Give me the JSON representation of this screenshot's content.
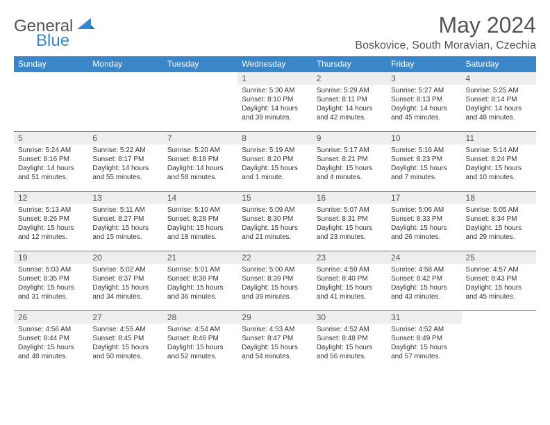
{
  "brand": {
    "part1": "General",
    "part2": "Blue"
  },
  "title": "May 2024",
  "location": "Boskovice, South Moravian, Czechia",
  "colors": {
    "header_bg": "#3a86c8",
    "header_text": "#ffffff",
    "daynum_bg": "#eeeeee",
    "border": "#3a86c8",
    "text": "#333333",
    "title_text": "#555555"
  },
  "weekdays": [
    "Sunday",
    "Monday",
    "Tuesday",
    "Wednesday",
    "Thursday",
    "Friday",
    "Saturday"
  ],
  "weeks": [
    [
      null,
      null,
      null,
      {
        "n": "1",
        "sr": "5:30 AM",
        "ss": "8:10 PM",
        "dl": "14 hours and 39 minutes."
      },
      {
        "n": "2",
        "sr": "5:29 AM",
        "ss": "8:11 PM",
        "dl": "14 hours and 42 minutes."
      },
      {
        "n": "3",
        "sr": "5:27 AM",
        "ss": "8:13 PM",
        "dl": "14 hours and 45 minutes."
      },
      {
        "n": "4",
        "sr": "5:25 AM",
        "ss": "8:14 PM",
        "dl": "14 hours and 48 minutes."
      }
    ],
    [
      {
        "n": "5",
        "sr": "5:24 AM",
        "ss": "8:16 PM",
        "dl": "14 hours and 51 minutes."
      },
      {
        "n": "6",
        "sr": "5:22 AM",
        "ss": "8:17 PM",
        "dl": "14 hours and 55 minutes."
      },
      {
        "n": "7",
        "sr": "5:20 AM",
        "ss": "8:18 PM",
        "dl": "14 hours and 58 minutes."
      },
      {
        "n": "8",
        "sr": "5:19 AM",
        "ss": "8:20 PM",
        "dl": "15 hours and 1 minute."
      },
      {
        "n": "9",
        "sr": "5:17 AM",
        "ss": "8:21 PM",
        "dl": "15 hours and 4 minutes."
      },
      {
        "n": "10",
        "sr": "5:16 AM",
        "ss": "8:23 PM",
        "dl": "15 hours and 7 minutes."
      },
      {
        "n": "11",
        "sr": "5:14 AM",
        "ss": "8:24 PM",
        "dl": "15 hours and 10 minutes."
      }
    ],
    [
      {
        "n": "12",
        "sr": "5:13 AM",
        "ss": "8:26 PM",
        "dl": "15 hours and 12 minutes."
      },
      {
        "n": "13",
        "sr": "5:11 AM",
        "ss": "8:27 PM",
        "dl": "15 hours and 15 minutes."
      },
      {
        "n": "14",
        "sr": "5:10 AM",
        "ss": "8:28 PM",
        "dl": "15 hours and 18 minutes."
      },
      {
        "n": "15",
        "sr": "5:09 AM",
        "ss": "8:30 PM",
        "dl": "15 hours and 21 minutes."
      },
      {
        "n": "16",
        "sr": "5:07 AM",
        "ss": "8:31 PM",
        "dl": "15 hours and 23 minutes."
      },
      {
        "n": "17",
        "sr": "5:06 AM",
        "ss": "8:33 PM",
        "dl": "15 hours and 26 minutes."
      },
      {
        "n": "18",
        "sr": "5:05 AM",
        "ss": "8:34 PM",
        "dl": "15 hours and 29 minutes."
      }
    ],
    [
      {
        "n": "19",
        "sr": "5:03 AM",
        "ss": "8:35 PM",
        "dl": "15 hours and 31 minutes."
      },
      {
        "n": "20",
        "sr": "5:02 AM",
        "ss": "8:37 PM",
        "dl": "15 hours and 34 minutes."
      },
      {
        "n": "21",
        "sr": "5:01 AM",
        "ss": "8:38 PM",
        "dl": "15 hours and 36 minutes."
      },
      {
        "n": "22",
        "sr": "5:00 AM",
        "ss": "8:39 PM",
        "dl": "15 hours and 39 minutes."
      },
      {
        "n": "23",
        "sr": "4:59 AM",
        "ss": "8:40 PM",
        "dl": "15 hours and 41 minutes."
      },
      {
        "n": "24",
        "sr": "4:58 AM",
        "ss": "8:42 PM",
        "dl": "15 hours and 43 minutes."
      },
      {
        "n": "25",
        "sr": "4:57 AM",
        "ss": "8:43 PM",
        "dl": "15 hours and 45 minutes."
      }
    ],
    [
      {
        "n": "26",
        "sr": "4:56 AM",
        "ss": "8:44 PM",
        "dl": "15 hours and 48 minutes."
      },
      {
        "n": "27",
        "sr": "4:55 AM",
        "ss": "8:45 PM",
        "dl": "15 hours and 50 minutes."
      },
      {
        "n": "28",
        "sr": "4:54 AM",
        "ss": "8:46 PM",
        "dl": "15 hours and 52 minutes."
      },
      {
        "n": "29",
        "sr": "4:53 AM",
        "ss": "8:47 PM",
        "dl": "15 hours and 54 minutes."
      },
      {
        "n": "30",
        "sr": "4:52 AM",
        "ss": "8:48 PM",
        "dl": "15 hours and 56 minutes."
      },
      {
        "n": "31",
        "sr": "4:52 AM",
        "ss": "8:49 PM",
        "dl": "15 hours and 57 minutes."
      },
      null
    ]
  ],
  "labels": {
    "sunrise": "Sunrise:",
    "sunset": "Sunset:",
    "daylight": "Daylight:"
  }
}
